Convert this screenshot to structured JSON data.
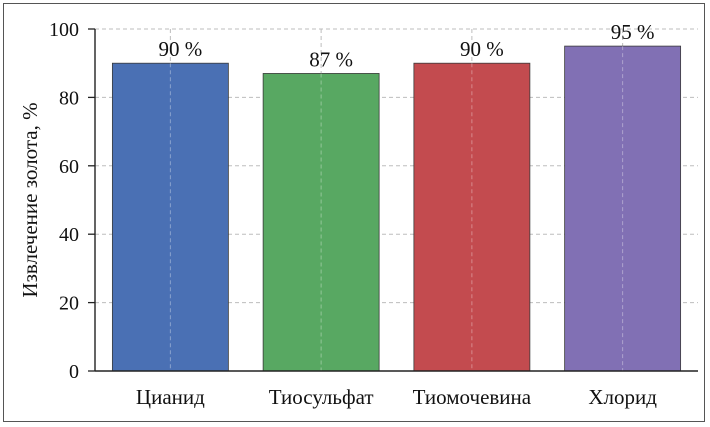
{
  "chart_data": {
    "type": "bar",
    "categories": [
      "Цианид",
      "Тиосульфат",
      "Тиомочевина",
      "Хлорид"
    ],
    "values": [
      90,
      87,
      90,
      95
    ],
    "data_labels": [
      "90 %",
      "87 %",
      "90 %",
      "95 %"
    ],
    "colors": [
      "#4a70b4",
      "#58a862",
      "#c34b4f",
      "#8170b4"
    ],
    "ylabel": "Извлечение золота, %",
    "xlabel": "",
    "ylim": [
      0,
      100
    ],
    "yticks": [
      0,
      20,
      40,
      60,
      80,
      100
    ],
    "grid": true
  }
}
